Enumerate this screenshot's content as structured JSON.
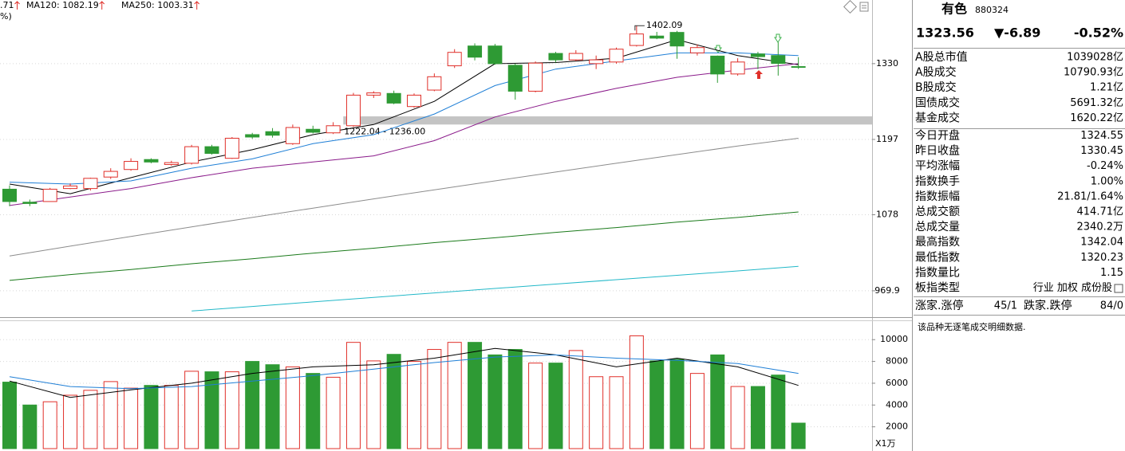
{
  "chart_data": [
    {
      "type": "candlestick",
      "log_scale": true,
      "grid": true,
      "up_color": "#e0302a",
      "down_color": "#2e9a34",
      "ylim": [
        935,
        1453
      ],
      "yticks": [
        969.9,
        1078,
        1197,
        1330
      ],
      "header": [
        ".71",
        "MA120: 1082.19",
        "MA250: 1003.31",
        "%)"
      ],
      "open": [
        1117,
        1097,
        1098,
        1118,
        1118,
        1136,
        1148,
        1164,
        1156,
        1158,
        1185,
        1166,
        1205,
        1210,
        1190,
        1214,
        1208,
        1220,
        1273,
        1276,
        1253,
        1282,
        1326,
        1363,
        1363,
        1327,
        1280,
        1349,
        1337,
        1330,
        1333,
        1364,
        1382,
        1389,
        1350,
        1344,
        1311,
        1348,
        1345,
        1324.55
      ],
      "high": [
        1123,
        1101,
        1119,
        1126,
        1135,
        1150,
        1166,
        1166,
        1162,
        1188,
        1188,
        1201,
        1208,
        1216,
        1222,
        1220,
        1226,
        1277,
        1280,
        1281,
        1276,
        1312,
        1357,
        1368,
        1367,
        1330,
        1334,
        1352,
        1355,
        1345,
        1360,
        1402.09,
        1390,
        1392,
        1366,
        1345,
        1340,
        1352,
        1370,
        1342.04
      ],
      "low": [
        1091,
        1091,
        1098,
        1117,
        1115,
        1133,
        1146,
        1158,
        1154,
        1156,
        1172,
        1165,
        1198,
        1200,
        1188,
        1207,
        1206,
        1218,
        1268,
        1257,
        1251,
        1280,
        1322,
        1336,
        1328,
        1265,
        1278,
        1332,
        1335,
        1320,
        1330,
        1362,
        1376,
        1339,
        1345,
        1295,
        1308,
        1320,
        1308,
        1320.23
      ],
      "close": [
        1098,
        1095,
        1117,
        1122,
        1134,
        1145,
        1161,
        1160,
        1159,
        1185,
        1174,
        1199,
        1201,
        1204,
        1217,
        1209,
        1220,
        1273,
        1277,
        1259,
        1273,
        1306,
        1351,
        1342,
        1330,
        1280,
        1331,
        1337,
        1349,
        1337,
        1357,
        1386,
        1378,
        1363,
        1360,
        1311,
        1333,
        1343,
        1330.45,
        1323.56
      ],
      "lines": [
        {
          "color": "#000000",
          "x": [
            0,
            3,
            6,
            9,
            12,
            15,
            18,
            21,
            24,
            27,
            30,
            33,
            36,
            39
          ],
          "values": [
            1125,
            1110,
            1135,
            1160,
            1180,
            1205,
            1222,
            1262,
            1330,
            1332,
            1340,
            1375,
            1345,
            1328
          ]
        },
        {
          "color": "#1f7fd6",
          "x": [
            0,
            3,
            6,
            9,
            12,
            15,
            18,
            21,
            24,
            27,
            30,
            33,
            36,
            39
          ],
          "values": [
            1128,
            1125,
            1130,
            1150,
            1165,
            1190,
            1205,
            1240,
            1290,
            1320,
            1335,
            1350,
            1350,
            1345
          ]
        },
        {
          "color": "#8a1a8a",
          "x": [
            0,
            3,
            6,
            9,
            12,
            15,
            18,
            21,
            24,
            27,
            30,
            33,
            36,
            39
          ],
          "values": [
            1092,
            1105,
            1118,
            1135,
            1150,
            1160,
            1170,
            1195,
            1235,
            1262,
            1285,
            1305,
            1318,
            1330
          ]
        },
        {
          "color": "#8c8c8c",
          "x": [
            0,
            3,
            6,
            9,
            12,
            15,
            18,
            21,
            24,
            27,
            30,
            33,
            36,
            39
          ],
          "values": [
            1018,
            1032,
            1046,
            1060,
            1074,
            1088,
            1102,
            1116,
            1130,
            1144,
            1158,
            1172,
            1186,
            1199
          ]
        },
        {
          "color": "#1a7a1a",
          "x": [
            0,
            3,
            6,
            9,
            12,
            15,
            18,
            21,
            24,
            27,
            30,
            33,
            36,
            39
          ],
          "values": [
            984,
            992,
            999,
            1007,
            1014,
            1022,
            1029,
            1037,
            1044,
            1052,
            1059,
            1067,
            1074,
            1082.19
          ]
        },
        {
          "color": "#22b8c8",
          "x": [
            9,
            12,
            15,
            18,
            21,
            24,
            27,
            30,
            33,
            36,
            39
          ],
          "values": [
            943,
            949,
            955,
            961,
            967,
            973,
            979,
            985,
            991,
            997,
            1003.31
          ]
        }
      ],
      "band": {
        "low": 1222.04,
        "high": 1236.0,
        "x": 16.5,
        "label": "1222.04 - 1236.00"
      },
      "annotation": {
        "x": 31,
        "value": 1402.09
      }
    },
    {
      "type": "bar",
      "grid": true,
      "unit": "X1万",
      "ylim": [
        0,
        11700
      ],
      "yticks": [
        2000,
        4000,
        6000,
        8000,
        10000
      ],
      "values": [
        6100,
        4000,
        4300,
        4900,
        5350,
        6150,
        5550,
        5800,
        5800,
        7100,
        7050,
        7050,
        8000,
        7700,
        7500,
        6900,
        6550,
        9750,
        8050,
        8650,
        8000,
        9100,
        9750,
        9750,
        8600,
        9100,
        7850,
        7850,
        9000,
        6600,
        6600,
        10350,
        8050,
        8200,
        6900,
        8600,
        5700,
        5700,
        6750,
        2340
      ],
      "lines": [
        {
          "color": "#000000",
          "x": [
            0,
            3,
            6,
            9,
            12,
            15,
            18,
            21,
            24,
            27,
            30,
            33,
            36,
            39
          ],
          "values": [
            6200,
            4700,
            5400,
            6000,
            6900,
            7500,
            7700,
            8300,
            9200,
            8600,
            7500,
            8300,
            7500,
            5800
          ]
        },
        {
          "color": "#1f7fd6",
          "x": [
            0,
            3,
            6,
            9,
            12,
            15,
            18,
            21,
            24,
            27,
            30,
            33,
            36,
            39
          ],
          "values": [
            6600,
            5700,
            5500,
            5700,
            6200,
            6700,
            7300,
            7900,
            8400,
            8600,
            8300,
            8100,
            7800,
            6900
          ]
        }
      ]
    }
  ],
  "quote": {
    "name": "有色",
    "code": "880324",
    "price": "1323.56",
    "change": "▼-6.89",
    "pct": "-0.52%",
    "rows": [
      {
        "label": "A股总市值",
        "value": "1039028亿",
        "color": "#000000"
      },
      {
        "label": "A股成交",
        "value": "10790.93亿",
        "color": "#000000"
      },
      {
        "label": "B股成交",
        "value": "1.21亿",
        "color": "#000000"
      },
      {
        "label": "国债成交",
        "value": "5691.32亿",
        "color": "#000000"
      },
      {
        "label": "基金成交",
        "value": "1620.22亿",
        "color": "#000000"
      },
      {
        "label": "今日开盘",
        "value": "1324.55",
        "color": "#1e8a28"
      },
      {
        "label": "昨日收盘",
        "value": "1330.45",
        "color": "#000000"
      },
      {
        "label": "平均涨幅",
        "value": "-0.24%",
        "color": "#1e8a28"
      },
      {
        "label": "指数换手",
        "value": "1.00%",
        "color": "#000000"
      },
      {
        "label": "指数振幅",
        "value": "21.81/1.64%",
        "color": "#000000"
      },
      {
        "label": "总成交额",
        "value": "414.71亿",
        "color": "#000000"
      },
      {
        "label": "总成交量",
        "value": "2340.2万",
        "color": "#000000"
      },
      {
        "label": "最高指数",
        "value": "1342.04",
        "color": "#e0302a"
      },
      {
        "label": "最低指数",
        "value": "1320.23",
        "color": "#1e8a28"
      },
      {
        "label": "指数量比",
        "value": "1.15",
        "color": "#e0302a"
      },
      {
        "label": "板指类型",
        "value": "行业 加权 成份股",
        "color": "#000000"
      }
    ],
    "breadth": {
      "up_label": "涨家.涨停",
      "up": "45/1",
      "down_label": "跌家.跌停",
      "down": "84/0"
    },
    "note": "该品种无逐笔成交明细数据."
  }
}
